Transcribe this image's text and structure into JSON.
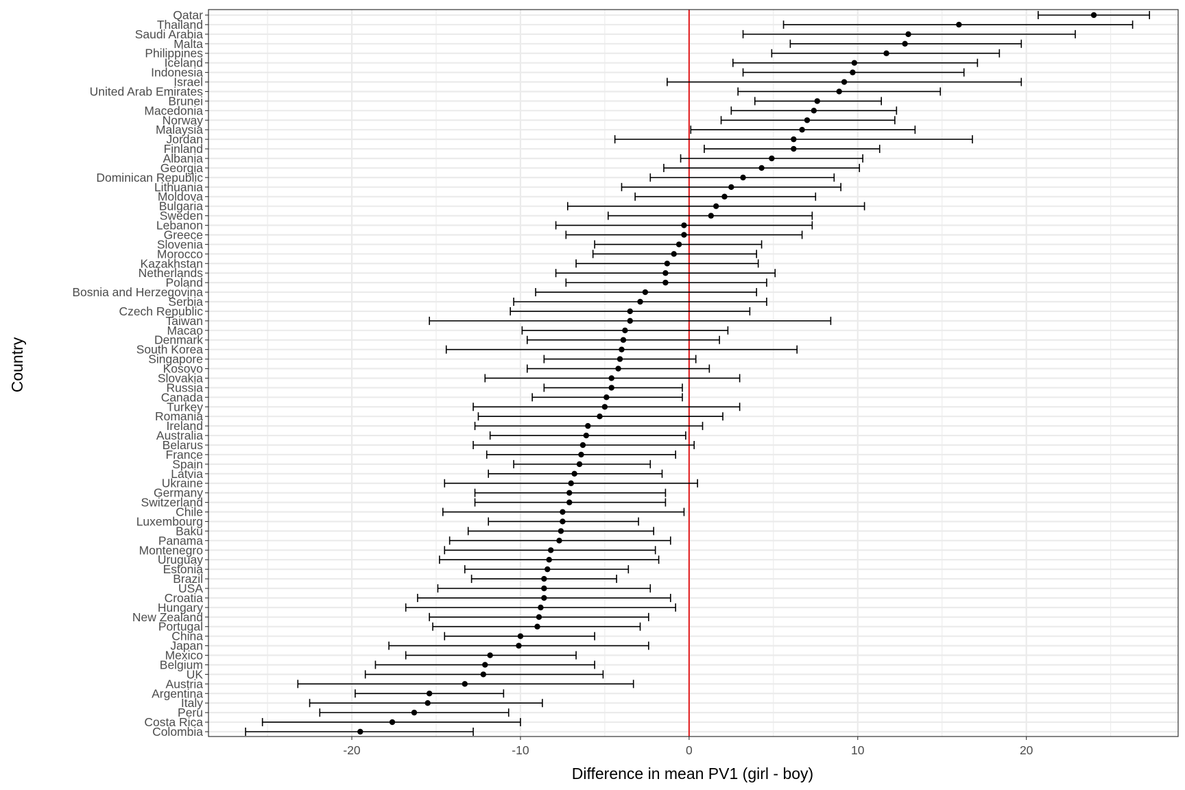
{
  "chart_data": {
    "type": "scatter",
    "subtype": "point-range (estimate with error bars)",
    "xlabel": "Difference in mean PV1 (girl - boy)",
    "ylabel": "Country",
    "xlim": [
      -28.5,
      29
    ],
    "x_ticks": [
      -20,
      -10,
      0,
      10,
      20
    ],
    "x_tick_labels": [
      "-20",
      "-10",
      "0",
      "10",
      "20"
    ],
    "reference_line": {
      "x": 0,
      "color": "#e31a1c"
    },
    "grid": true,
    "legend": "none",
    "colors": {
      "points": "#000000",
      "errorbars": "#000000",
      "reference": "#e31a1c",
      "grid": "#ebebeb",
      "panel_border": "#333333"
    },
    "countries": [
      "Qatar",
      "Thailand",
      "Saudi Arabia",
      "Malta",
      "Philippines",
      "Iceland",
      "Indonesia",
      "Israel",
      "United Arab Emirates",
      "Brunei",
      "Macedonia",
      "Norway",
      "Malaysia",
      "Jordan",
      "Finland",
      "Albania",
      "Georgia",
      "Dominican Republic",
      "Lithuania",
      "Moldova",
      "Bulgaria",
      "Sweden",
      "Lebanon",
      "Greece",
      "Slovenia",
      "Morocco",
      "Kazakhstan",
      "Netherlands",
      "Poland",
      "Bosnia and Herzegovina",
      "Serbia",
      "Czech Republic",
      "Taiwan",
      "Macao",
      "Denmark",
      "South Korea",
      "Singapore",
      "Kosovo",
      "Slovakia",
      "Russia",
      "Canada",
      "Turkey",
      "Romania",
      "Ireland",
      "Australia",
      "Belarus",
      "France",
      "Spain",
      "Latvia",
      "Ukraine",
      "Germany",
      "Switzerland",
      "Chile",
      "Luxembourg",
      "Baku",
      "Panama",
      "Montenegro",
      "Uruguay",
      "Estonia",
      "Brazil",
      "USA",
      "Croatia",
      "Hungary",
      "New Zealand",
      "Portugal",
      "China",
      "Japan",
      "Mexico",
      "Belgium",
      "UK",
      "Austria",
      "Argentina",
      "Italy",
      "Peru",
      "Costa Rica",
      "Colombia"
    ],
    "estimates": [
      24.0,
      16.0,
      13.0,
      12.8,
      11.7,
      9.8,
      9.7,
      9.2,
      8.9,
      7.6,
      7.4,
      7.0,
      6.7,
      6.2,
      6.2,
      4.9,
      4.3,
      3.2,
      2.5,
      2.1,
      1.6,
      1.3,
      -0.3,
      -0.3,
      -0.6,
      -0.9,
      -1.3,
      -1.4,
      -1.4,
      -2.6,
      -2.9,
      -3.5,
      -3.5,
      -3.8,
      -3.9,
      -4.0,
      -4.1,
      -4.2,
      -4.6,
      -4.6,
      -4.9,
      -5.0,
      -5.3,
      -6.0,
      -6.1,
      -6.3,
      -6.4,
      -6.5,
      -6.8,
      -7.0,
      -7.1,
      -7.1,
      -7.5,
      -7.5,
      -7.6,
      -7.7,
      -8.2,
      -8.3,
      -8.4,
      -8.6,
      -8.6,
      -8.6,
      -8.8,
      -8.9,
      -9.0,
      -10.0,
      -10.1,
      -11.8,
      -12.1,
      -12.2,
      -13.3,
      -15.4,
      -15.5,
      -16.3,
      -17.6,
      -19.5
    ],
    "lower": [
      20.7,
      5.6,
      3.2,
      6.0,
      4.9,
      2.6,
      3.2,
      -1.3,
      2.9,
      3.9,
      2.5,
      1.9,
      0.1,
      -4.4,
      0.9,
      -0.5,
      -1.5,
      -2.3,
      -4.0,
      -3.2,
      -7.2,
      -4.8,
      -7.9,
      -7.3,
      -5.6,
      -5.7,
      -6.7,
      -7.9,
      -7.3,
      -9.1,
      -10.4,
      -10.6,
      -15.4,
      -9.9,
      -9.6,
      -14.4,
      -8.6,
      -9.6,
      -12.1,
      -8.6,
      -9.3,
      -12.8,
      -12.5,
      -12.7,
      -11.8,
      -12.8,
      -12.0,
      -10.4,
      -11.9,
      -14.5,
      -12.7,
      -12.7,
      -14.6,
      -11.9,
      -13.1,
      -14.2,
      -14.5,
      -14.8,
      -13.3,
      -12.9,
      -14.9,
      -16.1,
      -16.8,
      -15.4,
      -15.2,
      -14.5,
      -17.8,
      -16.8,
      -18.6,
      -19.2,
      -23.2,
      -19.8,
      -22.5,
      -21.9,
      -25.3,
      -26.3
    ],
    "upper": [
      27.3,
      26.3,
      22.9,
      19.7,
      18.4,
      17.1,
      16.3,
      19.7,
      14.9,
      11.4,
      12.3,
      12.2,
      13.4,
      16.8,
      11.3,
      10.3,
      10.1,
      8.6,
      9.0,
      7.5,
      10.4,
      7.3,
      7.3,
      6.7,
      4.3,
      4.0,
      4.1,
      5.1,
      4.6,
      4.0,
      4.6,
      3.6,
      8.4,
      2.3,
      1.8,
      6.4,
      0.4,
      1.2,
      3.0,
      -0.4,
      -0.4,
      3.0,
      2.0,
      0.8,
      -0.2,
      0.3,
      -0.8,
      -2.3,
      -1.6,
      0.5,
      -1.4,
      -1.4,
      -0.3,
      -3.0,
      -2.1,
      -1.1,
      -2.0,
      -1.8,
      -3.6,
      -4.3,
      -2.3,
      -1.1,
      -0.8,
      -2.4,
      -2.9,
      -5.6,
      -2.4,
      -6.7,
      -5.6,
      -5.1,
      -3.3,
      -11.0,
      -8.7,
      -10.7,
      -10.0,
      -12.8
    ]
  }
}
